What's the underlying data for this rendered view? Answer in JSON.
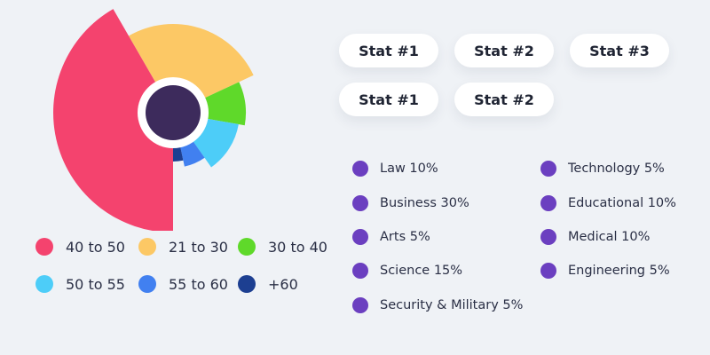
{
  "chart_data": {
    "type": "pie",
    "title": "",
    "center_color": "#3d2b5c",
    "series": [
      {
        "name": "21 to 30",
        "radius": 100,
        "color": "#fcc865",
        "start_deg": -30,
        "end_deg": 65
      },
      {
        "name": "30 to 40",
        "radius": 82,
        "color": "#5fd92a",
        "start_deg": 65,
        "end_deg": 100
      },
      {
        "name": "50 to 55",
        "radius": 75,
        "color": "#4dcdf8",
        "start_deg": 100,
        "end_deg": 145
      },
      {
        "name": "55 to 60",
        "radius": 62,
        "color": "#4180f0",
        "start_deg": 145,
        "end_deg": 168
      },
      {
        "name": "+60",
        "radius": 55,
        "color": "#1d3f91",
        "start_deg": 168,
        "end_deg": 180
      },
      {
        "name": "40 to 50",
        "radius": 135,
        "color": "#f4436e",
        "start_deg": 180,
        "end_deg": 330
      }
    ]
  },
  "legend": [
    {
      "label": "40 to 50",
      "color": "#f4436e"
    },
    {
      "label": "21 to 30",
      "color": "#fcc865"
    },
    {
      "label": "30 to 40",
      "color": "#5fd92a"
    },
    {
      "label": "50 to 55",
      "color": "#4dcdf8"
    },
    {
      "label": "55 to 60",
      "color": "#4180f0"
    },
    {
      "label": "+60",
      "color": "#1d3f91"
    }
  ],
  "stats": [
    {
      "label": "Stat #1"
    },
    {
      "label": "Stat #2"
    },
    {
      "label": "Stat #3"
    },
    {
      "label": "Stat #1"
    },
    {
      "label": "Stat #2"
    }
  ],
  "categories": {
    "dot_color": "#6b3fc0",
    "left": [
      {
        "label": "Law 10%"
      },
      {
        "label": "Business 30%"
      },
      {
        "label": "Arts 5%"
      },
      {
        "label": "Science 15%"
      },
      {
        "label": "Security & Military 5%"
      }
    ],
    "right": [
      {
        "label": "Technology 5%"
      },
      {
        "label": "Educational 10%"
      },
      {
        "label": "Medical 10%"
      },
      {
        "label": "Engineering 5%"
      }
    ]
  }
}
